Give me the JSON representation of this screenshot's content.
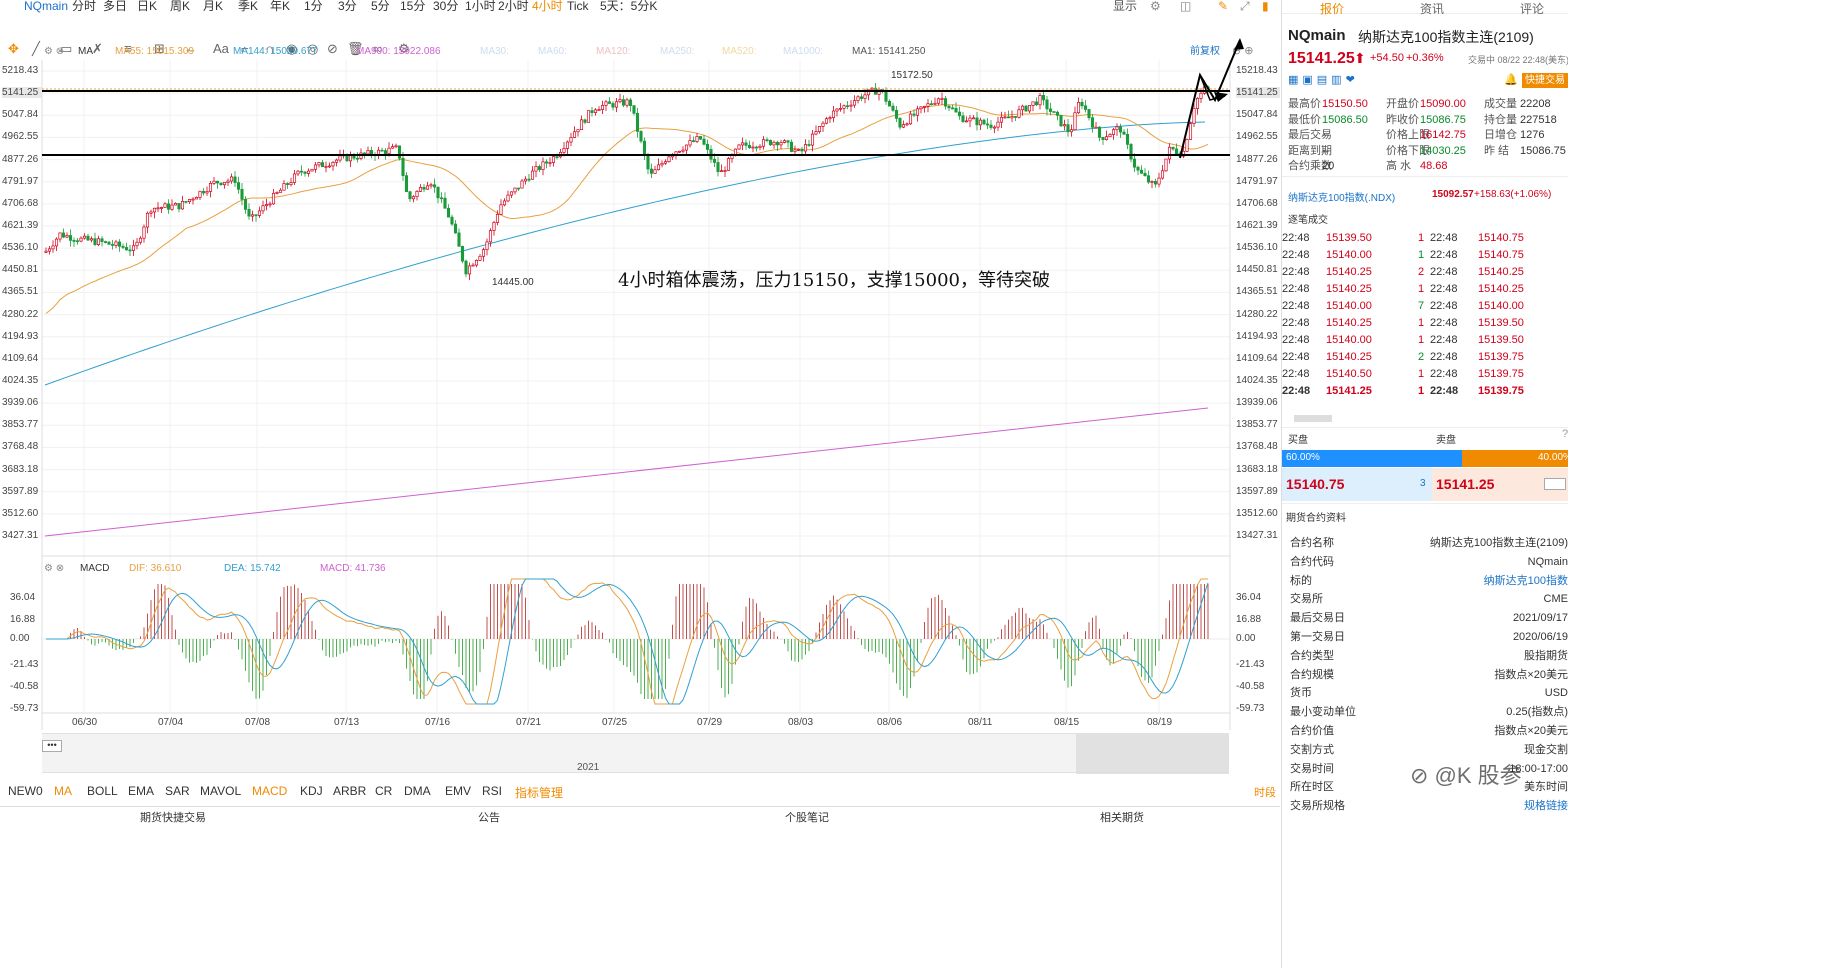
{
  "topbar": {
    "symbol": "NQmain",
    "periods": [
      "分时",
      "多日",
      "日K",
      "周K",
      "月K",
      "季K",
      "年K",
      "1分",
      "3分",
      "5分",
      "15分",
      "30分",
      "1小时",
      "2小时",
      "4小时",
      "Tick",
      "5天：5分K"
    ],
    "active_period": "4小时",
    "right": [
      "显示",
      "前复权"
    ]
  },
  "indicators": {
    "ma_label": "MA",
    "ma55": "MA55: 15015.309",
    "ma144": "MA144: 15029.677",
    "ma900": "MA900: 13922.086",
    "ma30": "MA30:",
    "ma60": "MA60:",
    "ma120": "MA120:",
    "ma250": "MA250:",
    "ma520": "MA520:",
    "ma1000": "MA1000:",
    "ma1": "MA1: 15141.250",
    "fuquan": "前复权"
  },
  "macd": {
    "label": "MACD",
    "dif": "DIF: 36.610",
    "dea": "DEA: 15.742",
    "macd": "MACD: 41.736"
  },
  "price_axis": [
    "5218.43",
    "5141.25",
    "5047.84",
    "4962.55",
    "4877.26",
    "4791.97",
    "4706.68",
    "4621.39",
    "4536.10",
    "4450.81",
    "4365.51",
    "4280.22",
    "4194.93",
    "4109.64",
    "4024.35",
    "3939.06",
    "3853.77",
    "3768.48",
    "3683.18",
    "3597.89",
    "3512.60",
    "3427.31"
  ],
  "price_axis_right": [
    "15218.43",
    "15141.25",
    "15047.84",
    "14962.55",
    "14877.26",
    "14791.97",
    "14706.68",
    "14621.39",
    "14536.10",
    "14450.81",
    "14365.51",
    "14280.22",
    "14194.93",
    "14109.64",
    "14024.35",
    "13939.06",
    "13853.77",
    "13768.48",
    "13683.18",
    "13597.89",
    "13512.60",
    "13427.31"
  ],
  "macd_axis": [
    "36.04",
    "16.88",
    "0.00",
    "-21.43",
    "-40.58",
    "-59.73"
  ],
  "dates": [
    "06/30",
    "07/04",
    "07/08",
    "07/13",
    "07/16",
    "07/21",
    "07/25",
    "07/29",
    "08/03",
    "08/06",
    "08/11",
    "08/15",
    "08/19"
  ],
  "annotations": {
    "high": "15172.50",
    "low": "14445.00",
    "comment": "4小时箱体震荡，压力15150，支撑15000，等待突破",
    "year": "2021"
  },
  "tabs": [
    "NEW0",
    "MA",
    "BOLL",
    "EMA",
    "SAR",
    "MAVOL",
    "MACD",
    "KDJ",
    "ARBR",
    "CR",
    "DMA",
    "EMV",
    "RSI",
    "指标管理"
  ],
  "active_tabs": [
    "MA",
    "MACD",
    "指标管理"
  ],
  "time_label": "时段",
  "bottom": [
    "期货快捷交易",
    "公告",
    "个股笔记",
    "相关期货"
  ],
  "right_panel": {
    "tabs": [
      "报价",
      "资讯",
      "评论"
    ],
    "code": "NQmain",
    "name": "纳斯达克100指数主连(2109)",
    "price": "15141.25",
    "change": "+54.50",
    "pct": "+0.36%",
    "time": "交易中 08/22 22:48(美东)",
    "quick_trade": "快捷交易",
    "stats": [
      [
        "最高价",
        "15150.50",
        "开盘价",
        "15090.00",
        "成交量",
        "22208"
      ],
      [
        "最低价",
        "15086.50",
        "昨收价",
        "15086.75",
        "持仓量",
        "227518"
      ],
      [
        "最后交易",
        "--",
        "价格上限",
        "16142.75",
        "日增仓",
        "1276"
      ],
      [
        "距离到期",
        "--",
        "价格下限",
        "14030.25",
        "昨 结",
        "15086.75"
      ],
      [
        "合约乘数",
        "20",
        "高 水",
        "48.68",
        "",
        ""
      ]
    ],
    "index_name": "纳斯达克100指数(.NDX)",
    "index_price": "15092.57",
    "index_change": "+158.63(+1.06%)",
    "ticks_title": "逐笔成交",
    "ticks": [
      [
        "22:48",
        "15139.50",
        "1",
        "22:48",
        "15140.75"
      ],
      [
        "22:48",
        "15140.00",
        "1",
        "22:48",
        "15140.75"
      ],
      [
        "22:48",
        "15140.25",
        "2",
        "22:48",
        "15140.25"
      ],
      [
        "22:48",
        "15140.25",
        "1",
        "22:48",
        "15140.25"
      ],
      [
        "22:48",
        "15140.00",
        "7",
        "22:48",
        "15140.00"
      ],
      [
        "22:48",
        "15140.25",
        "1",
        "22:48",
        "15139.50"
      ],
      [
        "22:48",
        "15140.00",
        "1",
        "22:48",
        "15139.50"
      ],
      [
        "22:48",
        "15140.25",
        "2",
        "22:48",
        "15139.75"
      ],
      [
        "22:48",
        "15140.50",
        "1",
        "22:48",
        "15139.75"
      ],
      [
        "22:48",
        "15141.25",
        "1",
        "22:48",
        "15139.75"
      ]
    ],
    "buy_label": "买盘",
    "sell_label": "卖盘",
    "buy_pct": "60.00%",
    "sell_pct": "40.00%",
    "bid": "15140.75",
    "bid_qty": "3",
    "ask": "15141.25",
    "info_title": "期货合约资料",
    "info": [
      [
        "合约名称",
        "纳斯达克100指数主连(2109)"
      ],
      [
        "合约代码",
        "NQmain"
      ],
      [
        "标的",
        "纳斯达克100指数"
      ],
      [
        "交易所",
        "CME"
      ],
      [
        "最后交易日",
        "2021/09/17"
      ],
      [
        "第一交易日",
        "2020/06/19"
      ],
      [
        "合约类型",
        "股指期货"
      ],
      [
        "合约规模",
        "指数点×20美元"
      ],
      [
        "货币",
        "USD"
      ],
      [
        "最小变动单位",
        "0.25(指数点)"
      ],
      [
        "合约价值",
        "指数点×20美元"
      ],
      [
        "交割方式",
        "现金交割"
      ],
      [
        "交易时间",
        "18:00-17:00"
      ],
      [
        "所在时区",
        "美东时间"
      ],
      [
        "交易所规格",
        "规格链接"
      ]
    ],
    "watermark": "K 股参"
  }
}
